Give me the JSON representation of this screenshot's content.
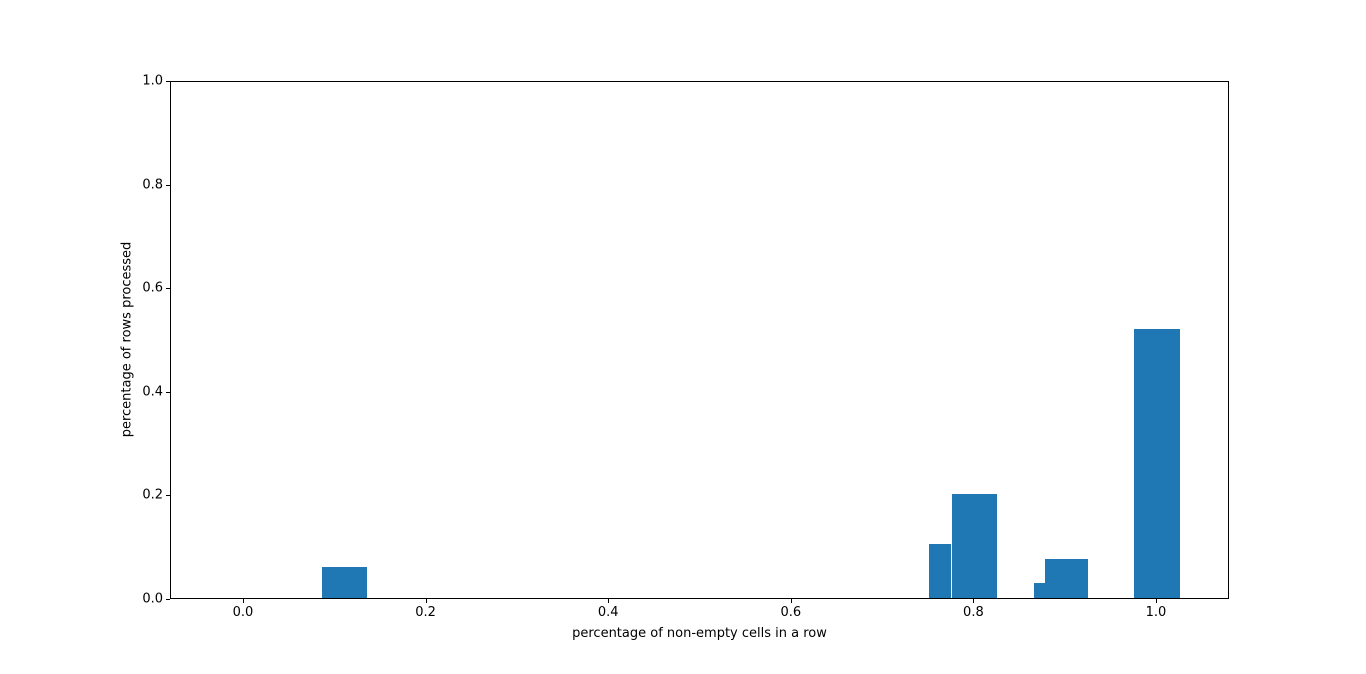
{
  "chart_data": {
    "type": "bar",
    "title": "",
    "xlabel": "percentage of non-empty cells in a row",
    "ylabel": "percentage of rows processed",
    "xlim": [
      -0.08,
      1.08
    ],
    "ylim": [
      0.0,
      1.0
    ],
    "x_ticks": [
      0.0,
      0.2,
      0.4,
      0.6,
      0.8,
      1.0
    ],
    "y_ticks": [
      0.0,
      0.2,
      0.4,
      0.6,
      0.8,
      1.0
    ],
    "tick_decimals": 1,
    "grid": "off",
    "legend": "none",
    "bar_color": "#1f77b4",
    "bars": [
      {
        "x0": 0.085,
        "x1": 0.135,
        "height": 0.06
      },
      {
        "x0": 0.75,
        "x1": 0.775,
        "height": 0.105
      },
      {
        "x0": 0.775,
        "x1": 0.825,
        "height": 0.2
      },
      {
        "x0": 0.865,
        "x1": 0.877,
        "height": 0.03
      },
      {
        "x0": 0.877,
        "x1": 0.925,
        "height": 0.075
      },
      {
        "x0": 0.975,
        "x1": 1.025,
        "height": 0.52
      }
    ]
  }
}
